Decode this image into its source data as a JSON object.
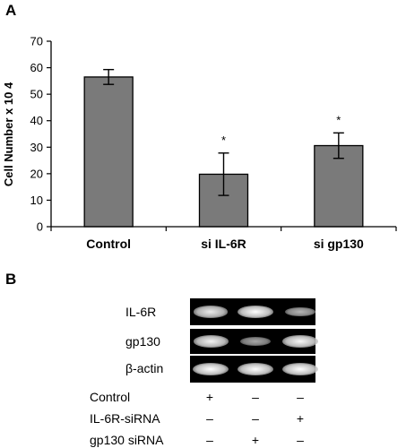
{
  "panel_a": {
    "letter": "A"
  },
  "panel_b": {
    "letter": "B"
  },
  "chart_data": {
    "type": "bar",
    "categories": [
      "Control",
      "si IL-6R",
      "si gp130"
    ],
    "values": [
      56.5,
      19.8,
      30.6
    ],
    "errors": [
      2.8,
      8.0,
      4.8
    ],
    "significance": [
      "",
      "*",
      "*"
    ],
    "title": "",
    "xlabel": "",
    "ylabel": "Cell Number x 10 4",
    "ylim": [
      0,
      70
    ],
    "yticks": [
      0,
      10,
      20,
      30,
      40,
      50,
      60,
      70
    ],
    "bar_color": "#7a7a7a",
    "grid": false
  },
  "blot": {
    "rows": [
      {
        "label": "IL-6R",
        "band_intensity": [
          0.85,
          1.0,
          0.45
        ]
      },
      {
        "label": "gp130",
        "band_intensity": [
          0.9,
          0.35,
          0.95
        ]
      },
      {
        "label": "β-actin",
        "band_intensity": [
          1.0,
          1.0,
          1.0
        ]
      }
    ],
    "conditions": [
      {
        "label": "Control",
        "signs": [
          "+",
          "–",
          "–"
        ]
      },
      {
        "label": "IL-6R-siRNA",
        "signs": [
          "–",
          "–",
          "+"
        ]
      },
      {
        "label": "gp130 siRNA",
        "signs": [
          "–",
          "+",
          "–"
        ]
      }
    ]
  }
}
